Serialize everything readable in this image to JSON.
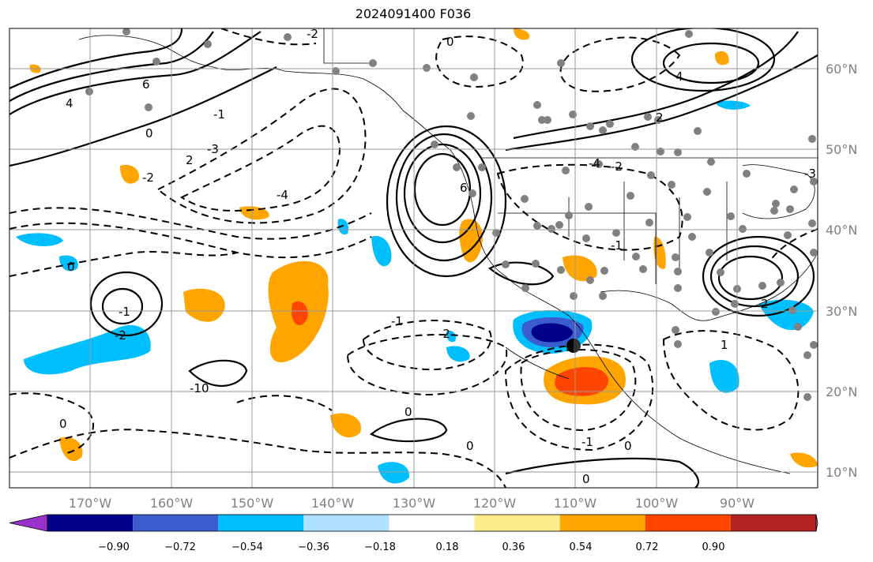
{
  "title": "2024091400 F036",
  "lon_labels": [
    "170°W",
    "160°W",
    "150°W",
    "140°W",
    "130°W",
    "120°W",
    "110°W",
    "100°W",
    "90°W"
  ],
  "lat_labels": [
    "60°N",
    "50°N",
    "40°N",
    "30°N",
    "20°N",
    "10°N"
  ],
  "colorbar": {
    "ticks": [
      "−0.90",
      "−0.72",
      "−0.54",
      "−0.36",
      "−0.18",
      "0.18",
      "0.36",
      "0.54",
      "0.72",
      "0.90"
    ],
    "colors": [
      "#9932cc",
      "#00008b",
      "#3a5ccc",
      "#00bfff",
      "#b0e2ff",
      "#ffffff",
      "#ffec8b",
      "#ffa500",
      "#ff4500",
      "#b22222",
      "#ff88b0"
    ]
  },
  "contour_labels": [
    "6",
    "4",
    "2",
    "0",
    "-2",
    "-1",
    "-3",
    "-4",
    "0",
    "6",
    "4",
    "2",
    "-1",
    "-2",
    "-1",
    "-2",
    "0",
    "0",
    "-1",
    "0",
    "0",
    "-10",
    "0",
    "1",
    "2",
    "-2",
    "-4",
    "-2",
    "0",
    "-1",
    "-3"
  ],
  "style": {
    "fill_pos": "#ffa500",
    "fill_pos_strong": "#ff4500",
    "fill_neg": "#00bfff",
    "fill_neg_strong": "#3a5ccc",
    "fill_neg_max": "#00008b",
    "dots": "#808080"
  }
}
